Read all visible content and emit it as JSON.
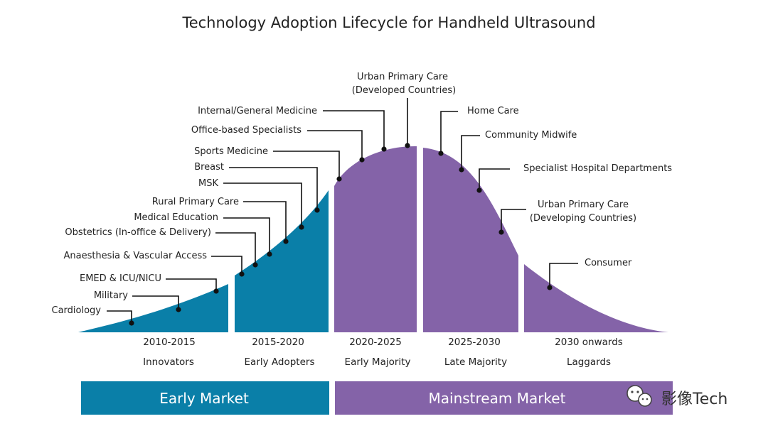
{
  "title": "Technology Adoption Lifecycle for Handheld Ultrasound",
  "colors": {
    "early": "#0a7fa8",
    "mainstream": "#8463a8",
    "leader": "#111111"
  },
  "phases": [
    {
      "years": "2010-2015",
      "name": "Innovators"
    },
    {
      "years": "2015-2020",
      "name": "Early Adopters"
    },
    {
      "years": "2020-2025",
      "name": "Early Majority"
    },
    {
      "years": "2025-2030",
      "name": "Late Majority"
    },
    {
      "years": "2030 onwards",
      "name": "Laggards"
    }
  ],
  "labels": {
    "cardiology": "Cardiology",
    "military": "Military",
    "emed": "EMED & ICU/NICU",
    "anaesthesia": "Anaesthesia & Vascular Access",
    "obstetrics": "Obstetrics (In-office & Delivery)",
    "med_education": "Medical Education",
    "rural_primary": "Rural Primary Care",
    "msk": "MSK",
    "breast": "Breast",
    "sports": "Sports Medicine",
    "office_specialists": "Office-based Specialists",
    "internal_medicine": "Internal/General Medicine",
    "urban_dev_line1": "Urban Primary Care",
    "urban_dev_line2": "(Developed Countries)",
    "home_care": "Home Care",
    "midwife": "Community Midwife",
    "specialist_hospital": "Specialist Hospital Departments",
    "urban_devg_line1": "Urban Primary Care",
    "urban_devg_line2": "(Developing Countries)",
    "consumer": "Consumer"
  },
  "bands": {
    "early_market": "Early Market",
    "mainstream_market": "Mainstream Market"
  },
  "watermark": {
    "icon": "wechat-icon",
    "text": "影像Tech"
  }
}
